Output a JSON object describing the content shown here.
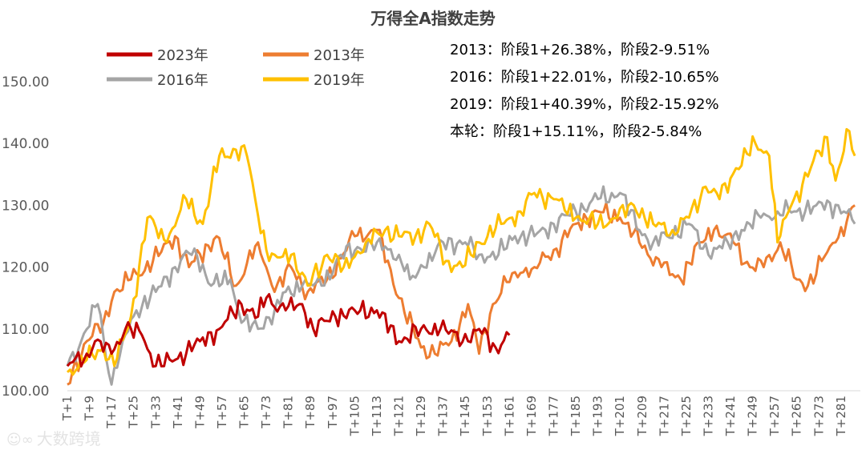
{
  "chart_data": {
    "type": "line",
    "title": "万得全A指数走势",
    "xlabel": "",
    "ylabel": "",
    "ylim": [
      100,
      150
    ],
    "yticks": [
      "100.00",
      "110.00",
      "120.00",
      "130.00",
      "140.00",
      "150.00"
    ],
    "x_count": 288,
    "xtick_labels": [
      "T+1",
      "T+9",
      "T+17",
      "T+25",
      "T+33",
      "T+41",
      "T+49",
      "T+57",
      "T+65",
      "T+73",
      "T+81",
      "T+89",
      "T+97",
      "T+105",
      "T+113",
      "T+121",
      "T+129",
      "T+137",
      "T+145",
      "T+153",
      "T+161",
      "T+169",
      "T+177",
      "T+185",
      "T+193",
      "T+201",
      "T+209",
      "T+217",
      "T+225",
      "T+233",
      "T+241",
      "T+249",
      "T+257",
      "T+265",
      "T+273",
      "T+281"
    ],
    "legend": [
      "2023年",
      "2013年",
      "2016年",
      "2019年"
    ],
    "series": [
      {
        "name": "2023年",
        "color": "#c00000",
        "anchors": [
          [
            1,
            104
          ],
          [
            8,
            106
          ],
          [
            11,
            108
          ],
          [
            17,
            106
          ],
          [
            22,
            110
          ],
          [
            28,
            109
          ],
          [
            33,
            104
          ],
          [
            40,
            105
          ],
          [
            49,
            108
          ],
          [
            56,
            110
          ],
          [
            64,
            114
          ],
          [
            70,
            112
          ],
          [
            73,
            115
          ],
          [
            80,
            113
          ],
          [
            86,
            114
          ],
          [
            90,
            110
          ],
          [
            98,
            112
          ],
          [
            105,
            113
          ],
          [
            113,
            113
          ],
          [
            121,
            108
          ],
          [
            129,
            110
          ],
          [
            136,
            110
          ],
          [
            146,
            108
          ],
          [
            150,
            110
          ],
          [
            156,
            107
          ],
          [
            161,
            109
          ]
        ]
      },
      {
        "name": "2013年",
        "color": "#ed7d31",
        "anchors": [
          [
            1,
            101
          ],
          [
            8,
            108
          ],
          [
            14,
            111
          ],
          [
            18,
            116
          ],
          [
            24,
            118
          ],
          [
            32,
            121
          ],
          [
            40,
            125
          ],
          [
            45,
            120
          ],
          [
            55,
            125
          ],
          [
            62,
            117
          ],
          [
            70,
            124
          ],
          [
            76,
            116
          ],
          [
            82,
            120
          ],
          [
            88,
            116
          ],
          [
            95,
            118
          ],
          [
            105,
            125
          ],
          [
            113,
            126
          ],
          [
            121,
            115
          ],
          [
            129,
            107
          ],
          [
            134,
            106
          ],
          [
            140,
            108
          ],
          [
            146,
            114
          ],
          [
            150,
            106
          ],
          [
            155,
            114
          ],
          [
            162,
            119
          ],
          [
            170,
            120
          ],
          [
            178,
            123
          ],
          [
            185,
            127
          ],
          [
            193,
            129
          ],
          [
            201,
            128
          ],
          [
            208,
            124
          ],
          [
            216,
            120
          ],
          [
            223,
            118
          ],
          [
            230,
            124
          ],
          [
            235,
            126
          ],
          [
            242,
            124
          ],
          [
            248,
            120
          ],
          [
            253,
            120
          ],
          [
            259,
            124
          ],
          [
            265,
            118
          ],
          [
            269,
            117
          ],
          [
            274,
            121
          ],
          [
            279,
            124
          ],
          [
            286,
            130
          ]
        ]
      },
      {
        "name": "2016年",
        "color": "#a5a5a5",
        "anchors": [
          [
            1,
            104
          ],
          [
            6,
            108
          ],
          [
            12,
            114
          ],
          [
            17,
            101
          ],
          [
            21,
            108
          ],
          [
            26,
            113
          ],
          [
            33,
            116
          ],
          [
            40,
            120
          ],
          [
            47,
            123
          ],
          [
            53,
            117
          ],
          [
            60,
            118
          ],
          [
            64,
            111
          ],
          [
            70,
            110
          ],
          [
            76,
            113
          ],
          [
            80,
            116
          ],
          [
            86,
            117
          ],
          [
            93,
            117
          ],
          [
            100,
            122
          ],
          [
            107,
            123
          ],
          [
            113,
            124
          ],
          [
            121,
            122
          ],
          [
            125,
            118
          ],
          [
            130,
            120
          ],
          [
            137,
            124
          ],
          [
            145,
            124
          ],
          [
            150,
            122
          ],
          [
            157,
            122
          ],
          [
            163,
            125
          ],
          [
            170,
            125
          ],
          [
            177,
            127
          ],
          [
            185,
            129
          ],
          [
            193,
            131
          ],
          [
            201,
            132
          ],
          [
            208,
            126
          ],
          [
            213,
            124
          ],
          [
            218,
            125
          ],
          [
            226,
            127
          ],
          [
            233,
            122
          ],
          [
            240,
            124
          ],
          [
            245,
            126
          ],
          [
            252,
            128
          ],
          [
            258,
            129
          ],
          [
            265,
            129
          ],
          [
            272,
            130
          ],
          [
            280,
            130
          ],
          [
            286,
            127
          ]
        ]
      },
      {
        "name": "2019年",
        "color": "#ffc000",
        "anchors": [
          [
            1,
            103
          ],
          [
            8,
            105
          ],
          [
            14,
            107
          ],
          [
            18,
            104
          ],
          [
            24,
            112
          ],
          [
            30,
            128
          ],
          [
            37,
            124
          ],
          [
            44,
            131
          ],
          [
            50,
            127
          ],
          [
            56,
            138
          ],
          [
            62,
            139
          ],
          [
            66,
            138
          ],
          [
            69,
            131
          ],
          [
            74,
            121
          ],
          [
            82,
            122
          ],
          [
            88,
            117
          ],
          [
            95,
            122
          ],
          [
            101,
            120
          ],
          [
            109,
            124
          ],
          [
            116,
            126
          ],
          [
            121,
            125
          ],
          [
            127,
            125
          ],
          [
            132,
            127
          ],
          [
            138,
            121
          ],
          [
            144,
            120
          ],
          [
            150,
            124
          ],
          [
            158,
            127
          ],
          [
            165,
            129
          ],
          [
            170,
            132
          ],
          [
            177,
            131
          ],
          [
            185,
            128
          ],
          [
            193,
            127
          ],
          [
            200,
            128
          ],
          [
            206,
            130
          ],
          [
            213,
            127
          ],
          [
            220,
            126
          ],
          [
            226,
            128
          ],
          [
            232,
            133
          ],
          [
            237,
            131
          ],
          [
            243,
            136
          ],
          [
            250,
            140
          ],
          [
            255,
            138
          ],
          [
            258,
            124
          ],
          [
            263,
            130
          ],
          [
            270,
            136
          ],
          [
            276,
            141
          ],
          [
            279,
            134
          ],
          [
            284,
            142
          ],
          [
            286,
            138
          ]
        ]
      }
    ],
    "annotations": [
      "2013：阶段1+26.38%，阶段2-9.51%",
      "2016：阶段1+22.01%，阶段2-10.65%",
      "2019：阶段1+40.39%，阶段2-15.92%",
      "本轮：阶段1+15.11%，阶段2-5.84%"
    ]
  },
  "watermark": "大数跨境"
}
